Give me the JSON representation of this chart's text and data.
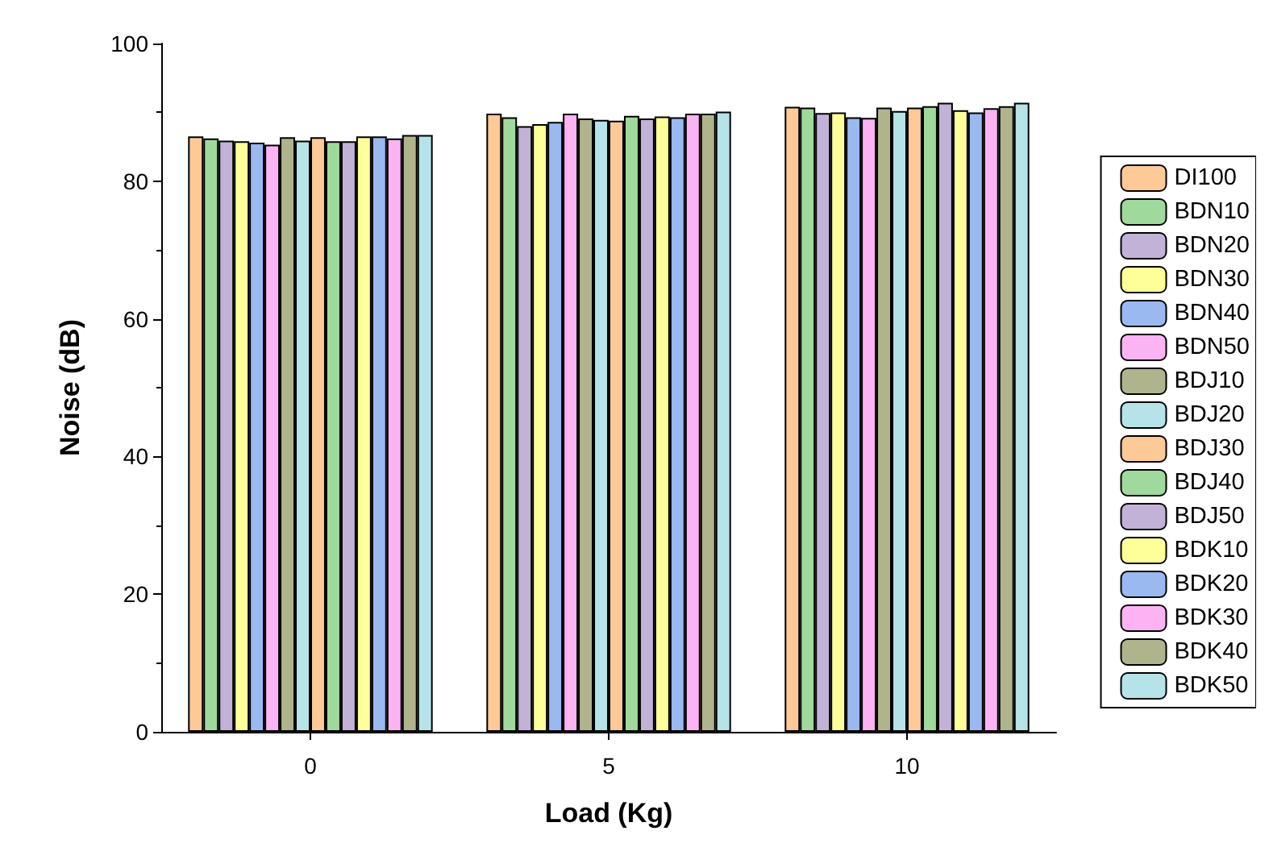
{
  "chart_data": {
    "type": "bar",
    "xlabel": "Load (Kg)",
    "ylabel": "Noise (dB)",
    "categories": [
      "0",
      "5",
      "10"
    ],
    "ylim": [
      0,
      100
    ],
    "yticks": [
      0,
      20,
      40,
      60,
      80,
      100
    ],
    "grid": false,
    "legend": "right",
    "series": [
      {
        "name": "DI100",
        "color": "#fdc997",
        "values": [
          86.5,
          89.8,
          90.8
        ]
      },
      {
        "name": "BDN10",
        "color": "#a0d99c",
        "values": [
          86.2,
          89.3,
          90.7
        ]
      },
      {
        "name": "BDN20",
        "color": "#c2b2d8",
        "values": [
          85.9,
          88.0,
          89.9
        ]
      },
      {
        "name": "BDN30",
        "color": "#ffff99",
        "values": [
          85.8,
          88.3,
          90.0
        ]
      },
      {
        "name": "BDN40",
        "color": "#99b9f0",
        "values": [
          85.6,
          88.6,
          89.3
        ]
      },
      {
        "name": "BDN50",
        "color": "#fcb3f4",
        "values": [
          85.3,
          89.8,
          89.2
        ]
      },
      {
        "name": "BDJ10",
        "color": "#b0b48d",
        "values": [
          86.4,
          89.1,
          90.7
        ]
      },
      {
        "name": "BDJ20",
        "color": "#b5e3e8",
        "values": [
          85.9,
          88.9,
          90.2
        ]
      },
      {
        "name": "BDJ30",
        "color": "#fdc997",
        "values": [
          86.4,
          88.8,
          90.7
        ]
      },
      {
        "name": "BDJ40",
        "color": "#a0d99c",
        "values": [
          85.8,
          89.5,
          90.9
        ]
      },
      {
        "name": "BDJ50",
        "color": "#c2b2d8",
        "values": [
          85.8,
          89.1,
          91.4
        ]
      },
      {
        "name": "BDK10",
        "color": "#ffff99",
        "values": [
          86.5,
          89.4,
          90.3
        ]
      },
      {
        "name": "BDK20",
        "color": "#99b9f0",
        "values": [
          86.5,
          89.3,
          90.0
        ]
      },
      {
        "name": "BDK30",
        "color": "#fcb3f4",
        "values": [
          86.2,
          89.8,
          90.6
        ]
      },
      {
        "name": "BDK40",
        "color": "#b0b48d",
        "values": [
          86.7,
          89.8,
          90.9
        ]
      },
      {
        "name": "BDK50",
        "color": "#b5e3e8",
        "values": [
          86.7,
          90.1,
          91.4
        ]
      }
    ]
  }
}
